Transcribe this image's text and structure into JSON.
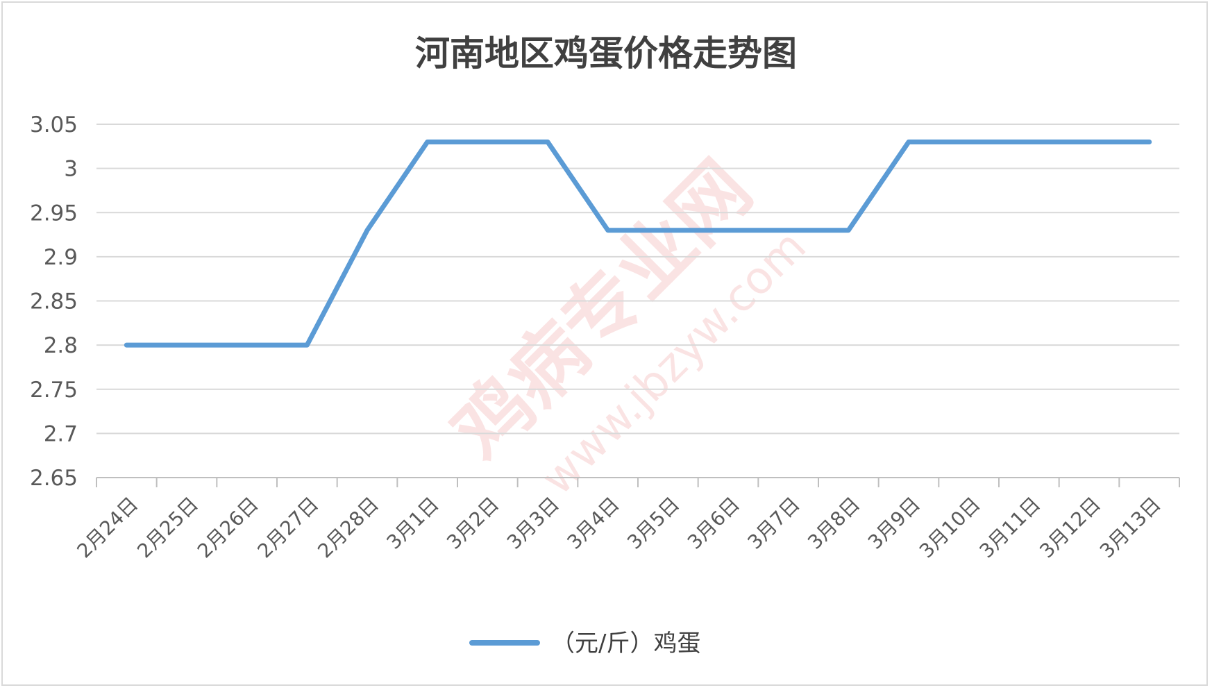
{
  "chart_data": {
    "type": "line",
    "title": "河南地区鸡蛋价格走势图",
    "categories": [
      "2月24日",
      "2月25日",
      "2月26日",
      "2月27日",
      "2月28日",
      "3月1日",
      "3月2日",
      "3月3日",
      "3月4日",
      "3月5日",
      "3月6日",
      "3月7日",
      "3月8日",
      "3月9日",
      "3月10日",
      "3月11日",
      "3月12日",
      "3月13日"
    ],
    "series": [
      {
        "name": "（元/斤）鸡蛋",
        "color": "#5b9bd5",
        "values": [
          2.8,
          2.8,
          2.8,
          2.8,
          2.93,
          3.03,
          3.03,
          3.03,
          2.93,
          2.93,
          2.93,
          2.93,
          2.93,
          3.03,
          3.03,
          3.03,
          3.03,
          3.03
        ]
      }
    ],
    "yticks": [
      "3.05",
      "3",
      "2.95",
      "2.9",
      "2.85",
      "2.8",
      "2.75",
      "2.7",
      "2.65"
    ],
    "ylim": [
      2.65,
      3.05
    ],
    "grid": true,
    "legend_position": "bottom",
    "xlabel": "",
    "ylabel": ""
  },
  "watermark": {
    "text": "鸡病专业网",
    "url": "www.jbzyw.com"
  }
}
